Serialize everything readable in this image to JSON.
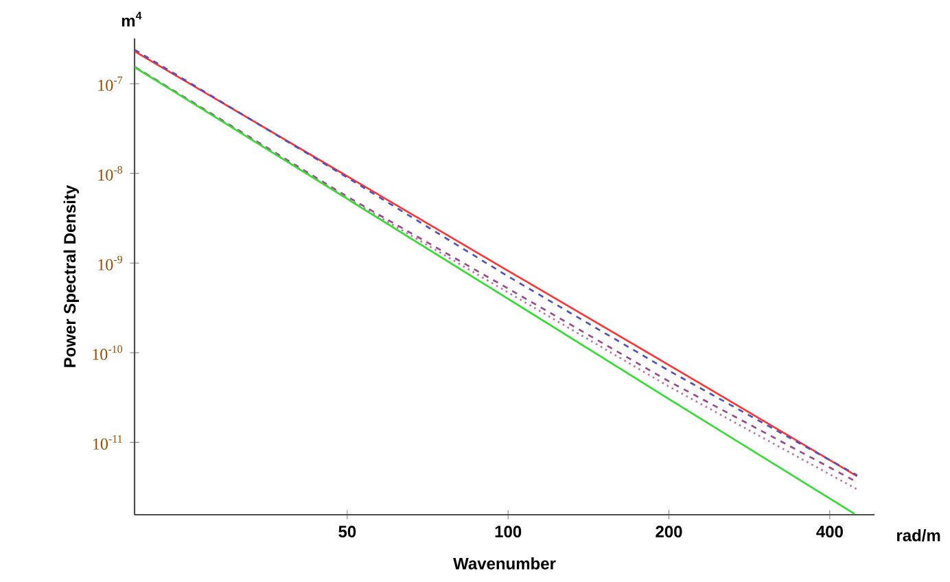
{
  "chart_data": {
    "type": "line",
    "xlabel": "Wavenumber",
    "ylabel": "Power Spectral Density",
    "annotations": [
      "m$^{4}$",
      "rad/m"
    ],
    "log": "xy",
    "grid": false,
    "marker": "none",
    "xlim": [
      20,
      485
    ],
    "ylim": [
      1.56e-12,
      3.2e-07
    ],
    "xticks": [
      50,
      100,
      200,
      400
    ],
    "yticks": [
      {
        "value": 1e-07,
        "label": "10$^{-7}$"
      },
      {
        "value": 1e-08,
        "label": "10$^{-8}$"
      },
      {
        "value": 1e-09,
        "label": "10$^{-9}$"
      },
      {
        "value": 1e-10,
        "label": "10$^{-10}$"
      },
      {
        "value": 1e-11,
        "label": "10$^{-11}$"
      }
    ],
    "x": [
      20,
      50,
      100,
      200,
      450
    ],
    "series": [
      {
        "color": "#ff3333",
        "line_style": "solid",
        "values": [
          2.3e-07,
          9.3e-09,
          8.2e-10,
          7.3e-11,
          4.2e-12
        ]
      },
      {
        "color": "#5050c0",
        "line_style": "dashed",
        "values": [
          2.4e-07,
          9e-09,
          7.1e-10,
          6.3e-11,
          4.3e-12
        ]
      },
      {
        "color": "#9a4a8a",
        "line_style": "dashed",
        "values": [
          1.55e-07,
          5.5e-09,
          5.2e-10,
          4.8e-11,
          3.6e-12
        ]
      },
      {
        "color": "#c070a0",
        "line_style": "dotted",
        "values": [
          1.55e-07,
          5.3e-09,
          4.7e-10,
          4.2e-11,
          3e-12
        ]
      },
      {
        "color": "#33dd33",
        "line_style": "solid",
        "x": [
          20,
          50,
          100,
          200,
          445
        ],
        "values": [
          1.53e-07,
          5.2e-09,
          4e-10,
          3.05e-11,
          1.6e-12
        ]
      }
    ]
  }
}
